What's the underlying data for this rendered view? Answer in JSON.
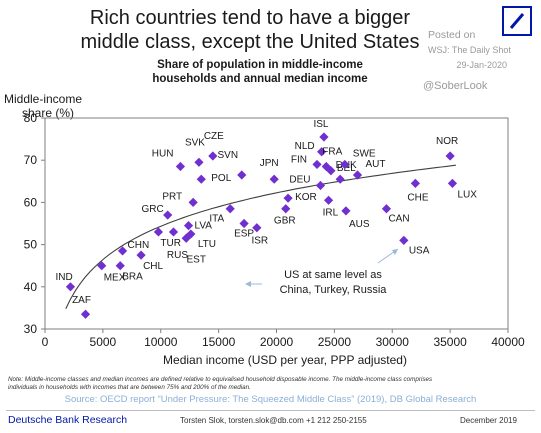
{
  "header": {
    "headline_line1": "Rich countries tend to have a bigger",
    "headline_line2": "middle class, except the United States",
    "posted_label": "Posted on",
    "posted_source": "WSJ: The Daily Shot",
    "posted_date": "29-Jan-2020",
    "handle": "@SoberLook"
  },
  "chart_data": {
    "type": "scatter",
    "title_line1": "Share of population in middle-income",
    "title_line2": "households and annual median income",
    "ylabel_line1": "Middle-income",
    "ylabel_line2": "share (%)",
    "xlabel": "Median income (USD per year, PPP adjusted)",
    "xlim": [
      0,
      40000
    ],
    "ylim": [
      30,
      80
    ],
    "xticks": [
      0,
      5000,
      10000,
      15000,
      20000,
      25000,
      30000,
      35000,
      40000
    ],
    "yticks": [
      30,
      40,
      50,
      60,
      70,
      80
    ],
    "grid": false,
    "marker_color": "#7030d0",
    "trendline": {
      "type": "logarithmic",
      "color": "#404040"
    },
    "points": [
      {
        "label": "IND",
        "x": 2200,
        "y": 40
      },
      {
        "label": "ZAF",
        "x": 3500,
        "y": 33.5
      },
      {
        "label": "MEX",
        "x": 4900,
        "y": 45
      },
      {
        "label": "BRA",
        "x": 6500,
        "y": 45
      },
      {
        "label": "CHN",
        "x": 6700,
        "y": 48.5
      },
      {
        "label": "CHL",
        "x": 8300,
        "y": 47.5
      },
      {
        "label": "TUR",
        "x": 9800,
        "y": 53
      },
      {
        "label": "GRC",
        "x": 10600,
        "y": 57
      },
      {
        "label": "RUS",
        "x": 11100,
        "y": 53
      },
      {
        "label": "HUN",
        "x": 11700,
        "y": 68.5
      },
      {
        "label": "EST",
        "x": 12200,
        "y": 51.5
      },
      {
        "label": "LVA",
        "x": 12400,
        "y": 54.5
      },
      {
        "label": "LTU",
        "x": 12600,
        "y": 52.5
      },
      {
        "label": "SVK",
        "x": 13300,
        "y": 69.5
      },
      {
        "label": "PRT",
        "x": 12800,
        "y": 60
      },
      {
        "label": "POL",
        "x": 13500,
        "y": 65.5
      },
      {
        "label": "CZE",
        "x": 14500,
        "y": 71
      },
      {
        "label": "SVN",
        "x": 17000,
        "y": 66.5
      },
      {
        "label": "ITA",
        "x": 16000,
        "y": 58.5
      },
      {
        "label": "ESP",
        "x": 17200,
        "y": 55
      },
      {
        "label": "ISR",
        "x": 18300,
        "y": 54
      },
      {
        "label": "JPN",
        "x": 19800,
        "y": 65.5
      },
      {
        "label": "GBR",
        "x": 20800,
        "y": 58.5
      },
      {
        "label": "KOR",
        "x": 21000,
        "y": 61
      },
      {
        "label": "DEU",
        "x": 23800,
        "y": 64
      },
      {
        "label": "FIN",
        "x": 23500,
        "y": 69
      },
      {
        "label": "NLD",
        "x": 23900,
        "y": 72
      },
      {
        "label": "ISL",
        "x": 24100,
        "y": 75.5
      },
      {
        "label": "FRA",
        "x": 24300,
        "y": 68.5
      },
      {
        "label": "BEL",
        "x": 24700,
        "y": 67.5
      },
      {
        "label": "DNK",
        "x": 25500,
        "y": 65.5
      },
      {
        "label": "SWE",
        "x": 25900,
        "y": 69
      },
      {
        "label": "AUT",
        "x": 27000,
        "y": 66.5
      },
      {
        "label": "IRL",
        "x": 24500,
        "y": 60.5
      },
      {
        "label": "AUS",
        "x": 26000,
        "y": 58
      },
      {
        "label": "CAN",
        "x": 29500,
        "y": 58.5
      },
      {
        "label": "CHE",
        "x": 32000,
        "y": 64.5
      },
      {
        "label": "USA",
        "x": 31000,
        "y": 51
      },
      {
        "label": "NOR",
        "x": 35000,
        "y": 71
      },
      {
        "label": "LUX",
        "x": 35200,
        "y": 64.5
      }
    ],
    "annotation": {
      "line1": "US at same level as",
      "line2": "China, Turkey, Russia"
    }
  },
  "footer": {
    "note_line1": "Note: Middle-income classes and median incomes are defined relative to equivalised household disposable income. The middle-income class comprises",
    "note_line2": "individuals in households with incomes that are between 75% and 200% of the median.",
    "source": "Source: OECD report “Under Pressure: The Squeezed Middle Class” (2019), DB Global Research",
    "org": "Deutsche Bank Research",
    "contact": "Torsten Slok, torsten.slok@db.com  +1 212 250-2155",
    "date": "December 2019"
  }
}
